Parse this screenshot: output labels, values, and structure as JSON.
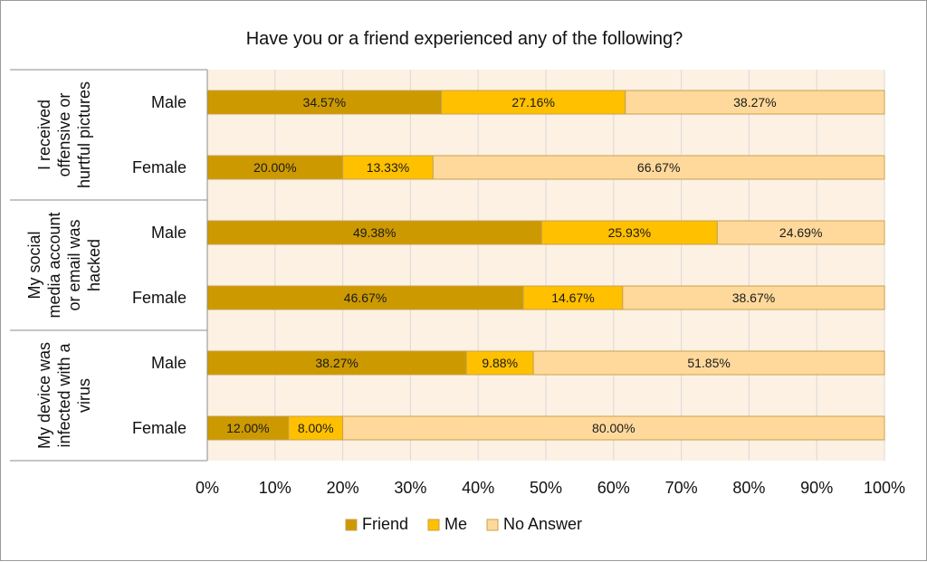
{
  "chart_data": {
    "type": "bar",
    "orientation": "horizontal",
    "stacked": true,
    "normalized_percent": true,
    "title": "Have you or a friend experienced any of the following?",
    "groups": [
      {
        "label_lines": [
          "I received",
          "offensive or",
          "hurtful pictures"
        ],
        "categories": [
          "Male",
          "Female"
        ]
      },
      {
        "label_lines": [
          "My social",
          "media account",
          "or email was",
          "hacked"
        ],
        "categories": [
          "Male",
          "Female"
        ]
      },
      {
        "label_lines": [
          "My device was",
          "infected with a",
          "virus"
        ],
        "categories": [
          "Male",
          "Female"
        ]
      }
    ],
    "series": [
      {
        "name": "Friend",
        "color": "#cc9900",
        "values": [
          34.57,
          20.0,
          49.38,
          46.67,
          38.27,
          12.0
        ],
        "labels": [
          "34.57%",
          "20.00%",
          "49.38%",
          "46.67%",
          "38.27%",
          "12.00%"
        ]
      },
      {
        "name": "Me",
        "color": "#ffc000",
        "values": [
          27.16,
          13.33,
          25.93,
          14.67,
          9.88,
          8.0
        ],
        "labels": [
          "27.16%",
          "13.33%",
          "25.93%",
          "14.67%",
          "9.88%",
          "8.00%"
        ]
      },
      {
        "name": "No Answer",
        "color": "#ffd99b",
        "values": [
          38.27,
          66.67,
          24.69,
          38.67,
          51.85,
          80.0
        ],
        "labels": [
          "38.27%",
          "66.67%",
          "24.69%",
          "38.67%",
          "51.85%",
          "80.00%"
        ]
      }
    ],
    "xlim": [
      0,
      100
    ],
    "x_ticks": [
      "0%",
      "10%",
      "20%",
      "30%",
      "40%",
      "50%",
      "60%",
      "70%",
      "80%",
      "90%",
      "100%"
    ],
    "grid": true,
    "plot_background": "#fdf1e4",
    "legend_position": "bottom"
  }
}
